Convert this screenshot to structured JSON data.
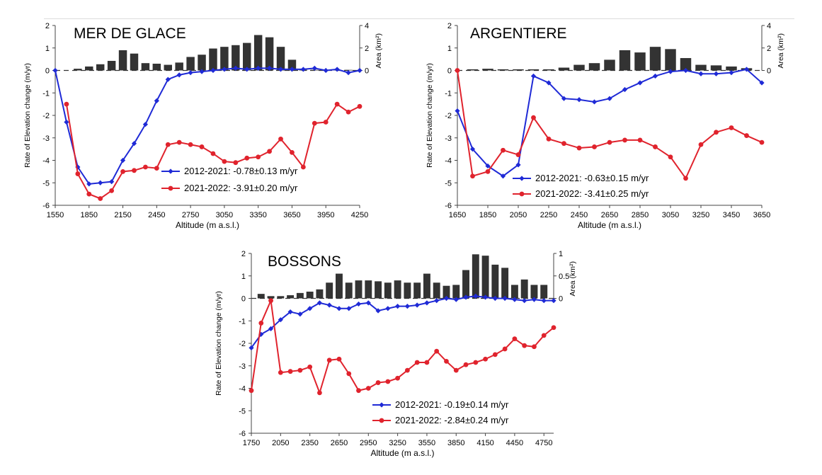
{
  "figure": {
    "colors": {
      "blue": "#1f2ad6",
      "red": "#e0232d",
      "bars": "#333333",
      "axis": "#444444"
    }
  },
  "chart_data": [
    {
      "type": "bar+line",
      "title": "MER DE GLACE",
      "xlabel": "Altitude (m a.s.l.)",
      "ylabel": "Rate of Elevation change (m/yr)",
      "y2label": "Area (km²)",
      "xlim": [
        1550,
        4250
      ],
      "ylim": [
        -6,
        2
      ],
      "y2lim": [
        0,
        4
      ],
      "xticks": [
        "1550",
        "1850",
        "2150",
        "2450",
        "2750",
        "3050",
        "3350",
        "3650",
        "3950",
        "4250"
      ],
      "yticks": [
        "2",
        "1",
        "0",
        "-1",
        "-2",
        "-3",
        "-4",
        "-5",
        "-6"
      ],
      "y2ticks": [
        "4",
        "2",
        "0"
      ],
      "bars": {
        "x": [
          1750,
          1850,
          1950,
          2050,
          2150,
          2250,
          2350,
          2450,
          2550,
          2650,
          2750,
          2850,
          2950,
          3050,
          3150,
          3250,
          3350,
          3450,
          3550,
          3650,
          3750,
          3850,
          3950,
          4050,
          4150
        ],
        "values": [
          0.15,
          0.35,
          0.55,
          0.85,
          1.8,
          1.5,
          0.65,
          0.6,
          0.5,
          0.7,
          1.2,
          1.4,
          1.95,
          2.1,
          2.25,
          2.45,
          3.15,
          2.95,
          2.1,
          0.95,
          0.05,
          0.05,
          0.05,
          0.05,
          0.05
        ]
      },
      "series": [
        {
          "name": "2012-2021: -0.78±0.13 m/yr",
          "color": "blue",
          "x": [
            1550,
            1650,
            1750,
            1850,
            1950,
            2050,
            2150,
            2250,
            2350,
            2450,
            2550,
            2650,
            2750,
            2850,
            2950,
            3050,
            3150,
            3250,
            3350,
            3450,
            3550,
            3650,
            3750,
            3850,
            3950,
            4050,
            4150,
            4250
          ],
          "values": [
            0.0,
            -2.3,
            -4.3,
            -5.05,
            -5.0,
            -4.95,
            -4.0,
            -3.25,
            -2.4,
            -1.35,
            -0.4,
            -0.2,
            -0.1,
            -0.05,
            0.0,
            0.05,
            0.1,
            0.05,
            0.1,
            0.1,
            0.05,
            0.05,
            0.05,
            0.1,
            0.0,
            0.05,
            -0.1,
            0.0
          ]
        },
        {
          "name": "2021-2022: -3.91±0.20 m/yr",
          "color": "red",
          "x": [
            1650,
            1750,
            1850,
            1950,
            2050,
            2150,
            2250,
            2350,
            2450,
            2550,
            2650,
            2750,
            2850,
            2950,
            3050,
            3150,
            3250,
            3350,
            3450,
            3550,
            3650,
            3750,
            3850,
            3950,
            4050,
            4150,
            4250
          ],
          "values": [
            -1.5,
            -4.6,
            -5.5,
            -5.7,
            -5.35,
            -4.5,
            -4.45,
            -4.3,
            -4.35,
            -3.3,
            -3.2,
            -3.3,
            -3.4,
            -3.7,
            -4.05,
            -4.1,
            -3.9,
            -3.85,
            -3.6,
            -3.05,
            -3.65,
            -4.3,
            -2.35,
            -2.3,
            -1.5,
            -1.85,
            -1.6
          ]
        }
      ]
    },
    {
      "type": "bar+line",
      "title": "ARGENTIERE",
      "xlabel": "Altitude (m a.s.l.)",
      "ylabel": "Rate of Elevation change (m/yr)",
      "y2label": "Area (km²)",
      "xlim": [
        1650,
        3650
      ],
      "ylim": [
        -6,
        2
      ],
      "y2lim": [
        0,
        4
      ],
      "xticks": [
        "1650",
        "1850",
        "2050",
        "2250",
        "2450",
        "2650",
        "2850",
        "3050",
        "3250",
        "3450",
        "3650"
      ],
      "yticks": [
        "2",
        "1",
        "0",
        "-1",
        "-2",
        "-3",
        "-4",
        "-5",
        "-6"
      ],
      "y2ticks": [
        "4",
        "2",
        "0"
      ],
      "bars": {
        "x": [
          1750,
          1850,
          1950,
          2050,
          2150,
          2250,
          2350,
          2450,
          2550,
          2650,
          2750,
          2850,
          2950,
          3050,
          3150,
          3250,
          3350,
          3450,
          3550
        ],
        "values": [
          0.1,
          0.15,
          0.1,
          0.1,
          0.1,
          0.1,
          0.25,
          0.5,
          0.65,
          0.95,
          1.8,
          1.6,
          2.1,
          1.9,
          1.1,
          0.5,
          0.45,
          0.35,
          0.2
        ]
      },
      "series": [
        {
          "name": "2012-2021: -0.63±0.15 m/yr",
          "color": "blue",
          "x": [
            1650,
            1750,
            1850,
            1950,
            2050,
            2150,
            2250,
            2350,
            2450,
            2550,
            2650,
            2750,
            2850,
            2950,
            3050,
            3150,
            3250,
            3350,
            3450,
            3550,
            3650
          ],
          "values": [
            -1.8,
            -3.5,
            -4.25,
            -4.7,
            -4.2,
            -0.25,
            -0.55,
            -1.25,
            -1.3,
            -1.4,
            -1.25,
            -0.85,
            -0.55,
            -0.25,
            -0.05,
            0.0,
            -0.15,
            -0.15,
            -0.1,
            0.05,
            -0.55
          ]
        },
        {
          "name": "2021-2022: -3.41±0.25 m/yr",
          "color": "red",
          "x": [
            1650,
            1750,
            1850,
            1950,
            2050,
            2150,
            2250,
            2350,
            2450,
            2550,
            2650,
            2750,
            2850,
            2950,
            3050,
            3150,
            3250,
            3350,
            3450,
            3550,
            3650
          ],
          "values": [
            0.0,
            -4.7,
            -4.5,
            -3.55,
            -3.75,
            -2.1,
            -3.05,
            -3.25,
            -3.45,
            -3.4,
            -3.2,
            -3.1,
            -3.1,
            -3.4,
            -3.85,
            -4.8,
            -3.3,
            -2.75,
            -2.55,
            -2.9,
            -3.2
          ]
        }
      ]
    },
    {
      "type": "bar+line",
      "title": "BOSSONS",
      "xlabel": "Altitude (m a.s.l.)",
      "ylabel": "Rate of Elevation change (m/yr)",
      "y2label": "Area (km²)",
      "xlim": [
        1750,
        4850
      ],
      "ylim": [
        -6,
        2
      ],
      "y2lim": [
        0,
        1
      ],
      "xticks": [
        "1750",
        "2050",
        "2350",
        "2650",
        "2950",
        "3250",
        "3550",
        "3850",
        "4150",
        "4450",
        "4750"
      ],
      "yticks": [
        "2",
        "1",
        "0",
        "-1",
        "-2",
        "-3",
        "-4",
        "-5",
        "-6"
      ],
      "y2ticks": [
        "1",
        "0.5",
        "0"
      ],
      "bars": {
        "x": [
          1850,
          1950,
          2050,
          2150,
          2250,
          2350,
          2450,
          2550,
          2650,
          2750,
          2850,
          2950,
          3050,
          3150,
          3250,
          3350,
          3450,
          3550,
          3650,
          3750,
          3850,
          3950,
          4050,
          4150,
          4250,
          4350,
          4450,
          4550,
          4650,
          4750
        ],
        "values": [
          0.1,
          0.05,
          0.05,
          0.07,
          0.12,
          0.15,
          0.2,
          0.35,
          0.55,
          0.35,
          0.4,
          0.4,
          0.38,
          0.35,
          0.4,
          0.35,
          0.35,
          0.55,
          0.35,
          0.28,
          0.3,
          0.63,
          0.98,
          0.95,
          0.75,
          0.68,
          0.3,
          0.42,
          0.3,
          0.3
        ]
      },
      "series": [
        {
          "name": "2012-2021: -0.19±0.14 m/yr",
          "color": "blue",
          "x": [
            1750,
            1850,
            1950,
            2050,
            2150,
            2250,
            2350,
            2450,
            2550,
            2650,
            2750,
            2850,
            2950,
            3050,
            3150,
            3250,
            3350,
            3450,
            3550,
            3650,
            3750,
            3850,
            3950,
            4050,
            4150,
            4250,
            4350,
            4450,
            4550,
            4650,
            4750,
            4850
          ],
          "values": [
            -2.2,
            -1.6,
            -1.35,
            -0.95,
            -0.6,
            -0.7,
            -0.45,
            -0.2,
            -0.3,
            -0.45,
            -0.45,
            -0.25,
            -0.2,
            -0.55,
            -0.45,
            -0.35,
            -0.35,
            -0.3,
            -0.2,
            -0.1,
            0.0,
            -0.05,
            0.05,
            0.1,
            0.05,
            0.0,
            0.0,
            -0.05,
            -0.1,
            -0.05,
            -0.1,
            -0.1
          ]
        },
        {
          "name": "2021-2022: -2.84±0.24 m/yr",
          "color": "red",
          "x": [
            1750,
            1850,
            1950,
            2050,
            2150,
            2250,
            2350,
            2450,
            2550,
            2650,
            2750,
            2850,
            2950,
            3050,
            3150,
            3250,
            3350,
            3450,
            3550,
            3650,
            3750,
            3850,
            3950,
            4050,
            4150,
            4250,
            4350,
            4450,
            4550,
            4650,
            4750,
            4850
          ],
          "values": [
            -4.1,
            -1.1,
            -0.1,
            -3.3,
            -3.25,
            -3.2,
            -3.05,
            -4.2,
            -2.75,
            -2.7,
            -3.35,
            -4.1,
            -4.0,
            -3.75,
            -3.7,
            -3.55,
            -3.2,
            -2.85,
            -2.85,
            -2.35,
            -2.8,
            -3.2,
            -2.95,
            -2.85,
            -2.7,
            -2.5,
            -2.25,
            -1.8,
            -2.1,
            -2.15,
            -1.65,
            -1.3
          ]
        }
      ]
    }
  ]
}
